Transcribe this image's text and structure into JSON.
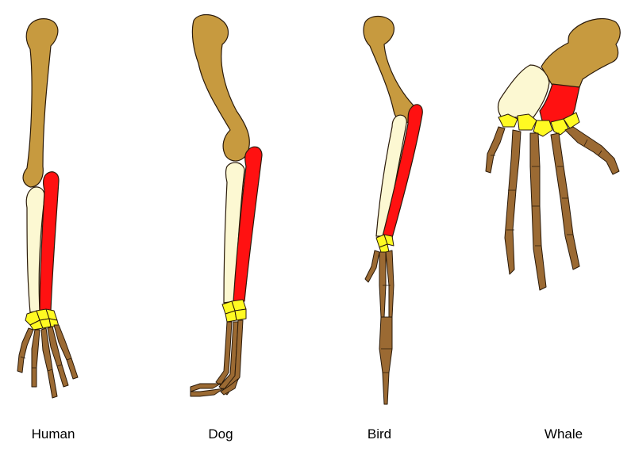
{
  "colors": {
    "humerus": "#C79A3F",
    "ulna": "#FCF8D2",
    "radius": "#FF1111",
    "carpals": "#FFFA22",
    "phalanges": "#9B6A33",
    "outline": "#2A1A0A"
  },
  "labels": {
    "human": "Human",
    "dog": "Dog",
    "bird": "Bird",
    "whale": "Whale"
  }
}
